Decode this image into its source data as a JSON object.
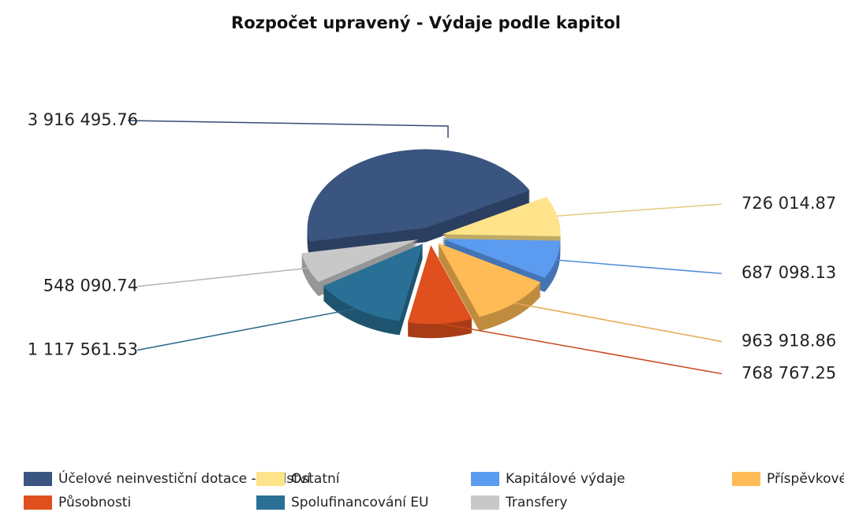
{
  "chart_data": {
    "type": "pie",
    "title": "Rozpočet upravený - Výdaje podle kapitol",
    "categories": [
      "Účelové neinvestiční dotace - školství",
      "Ostatní",
      "Kapitálové výdaje",
      "Příspěvkové organizace",
      "Působnosti",
      "Spolufinancování EU",
      "Transfery"
    ],
    "values": [
      3916495.76,
      726014.87,
      687098.13,
      963918.86,
      768767.25,
      1117561.53,
      548090.74
    ],
    "value_labels": [
      "3 916 495.76",
      "726 014.87",
      "687 098.13",
      "963 918.86",
      "768 767.25",
      "1 117 561.53",
      "548 090.74"
    ],
    "colors": [
      "#3a5580",
      "#ffe38a",
      "#5b9bf0",
      "#ffbb55",
      "#e0501e",
      "#2a7096",
      "#c8c8c8"
    ]
  }
}
